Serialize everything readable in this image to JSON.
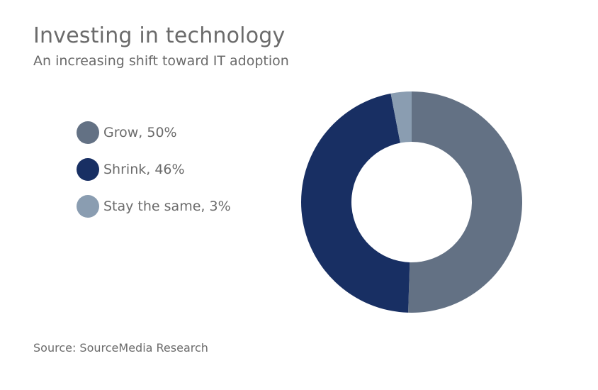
{
  "header": {
    "title": "Investing in technology",
    "subtitle": "An increasing shift toward IT adoption"
  },
  "chart_data": {
    "type": "pie",
    "variant": "donut",
    "title": "Investing in technology",
    "subtitle": "An increasing shift toward IT adoption",
    "legend_position": "left",
    "slices": [
      {
        "label": "Grow, 50%",
        "name": "Grow",
        "value": 50,
        "color": "#637184"
      },
      {
        "label": "Shrink, 46%",
        "name": "Shrink",
        "value": 46,
        "color": "#182f63"
      },
      {
        "label": "Stay the same, 3%",
        "name": "Stay the same",
        "value": 3,
        "color": "#8a9db1"
      }
    ]
  },
  "footer": {
    "source": "Source: SourceMedia Research"
  }
}
